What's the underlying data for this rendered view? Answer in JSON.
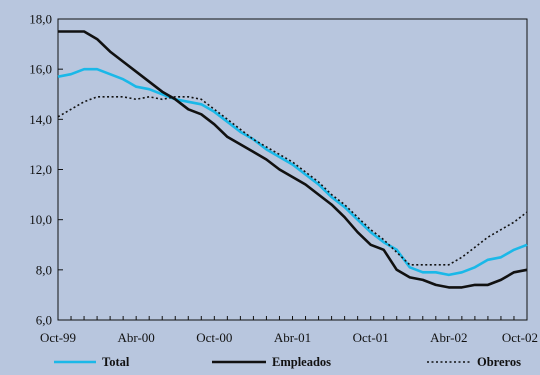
{
  "chart_data": {
    "type": "line",
    "title": "",
    "xlabel": "",
    "ylabel": "",
    "x": [
      "Oct-99",
      "Nov-99",
      "Dic-99",
      "Ene-00",
      "Feb-00",
      "Mar-00",
      "Abr-00",
      "May-00",
      "Jun-00",
      "Jul-00",
      "Ago-00",
      "Sep-00",
      "Oct-00",
      "Nov-00",
      "Dic-00",
      "Ene-01",
      "Feb-01",
      "Mar-01",
      "Abr-01",
      "May-01",
      "Jun-01",
      "Jul-01",
      "Ago-01",
      "Sep-01",
      "Oct-01",
      "Nov-01",
      "Dic-01",
      "Ene-02",
      "Feb-02",
      "Mar-02",
      "Abr-02",
      "May-02",
      "Jun-02",
      "Jul-02",
      "Ago-02",
      "Sep-02",
      "Oct-02"
    ],
    "x_ticks": [
      "Oct-99",
      "Abr-00",
      "Oct-00",
      "Abr-01",
      "Oct-01",
      "Abr-02",
      "Oct-02"
    ],
    "x_tick_index": [
      0,
      6,
      12,
      18,
      24,
      30,
      36
    ],
    "y_ticks": [
      "6,0",
      "8,0",
      "10,0",
      "12,0",
      "14,0",
      "16,0",
      "18,0"
    ],
    "ylim": [
      6,
      18
    ],
    "grid": false,
    "legend_position": "bottom",
    "series": [
      {
        "name": "Total",
        "color": "#1ab8e8",
        "style": "solid",
        "values": [
          15.7,
          15.8,
          16.0,
          16.0,
          15.8,
          15.6,
          15.3,
          15.2,
          15.0,
          14.8,
          14.7,
          14.6,
          14.3,
          13.9,
          13.5,
          13.2,
          12.8,
          12.5,
          12.2,
          11.8,
          11.4,
          10.9,
          10.5,
          10.0,
          9.5,
          9.1,
          8.8,
          8.1,
          7.9,
          7.9,
          7.8,
          7.9,
          8.1,
          8.4,
          8.5,
          8.8,
          9.0
        ]
      },
      {
        "name": "Empleados",
        "color": "#111111",
        "style": "solid",
        "values": [
          17.5,
          17.5,
          17.5,
          17.2,
          16.7,
          16.3,
          15.9,
          15.5,
          15.1,
          14.8,
          14.4,
          14.2,
          13.8,
          13.3,
          13.0,
          12.7,
          12.4,
          12.0,
          11.7,
          11.4,
          11.0,
          10.6,
          10.1,
          9.5,
          9.0,
          8.8,
          8.0,
          7.7,
          7.6,
          7.4,
          7.3,
          7.3,
          7.4,
          7.4,
          7.6,
          7.9,
          8.0
        ]
      },
      {
        "name": "Obreros",
        "color": "#111111",
        "style": "dotted",
        "values": [
          14.1,
          14.4,
          14.7,
          14.9,
          14.9,
          14.9,
          14.8,
          14.9,
          14.8,
          14.9,
          14.9,
          14.8,
          14.4,
          14.0,
          13.6,
          13.2,
          12.9,
          12.6,
          12.3,
          11.9,
          11.5,
          11.0,
          10.6,
          10.1,
          9.6,
          9.2,
          8.7,
          8.2,
          8.2,
          8.2,
          8.2,
          8.5,
          8.9,
          9.3,
          9.6,
          9.9,
          10.3
        ]
      }
    ]
  }
}
